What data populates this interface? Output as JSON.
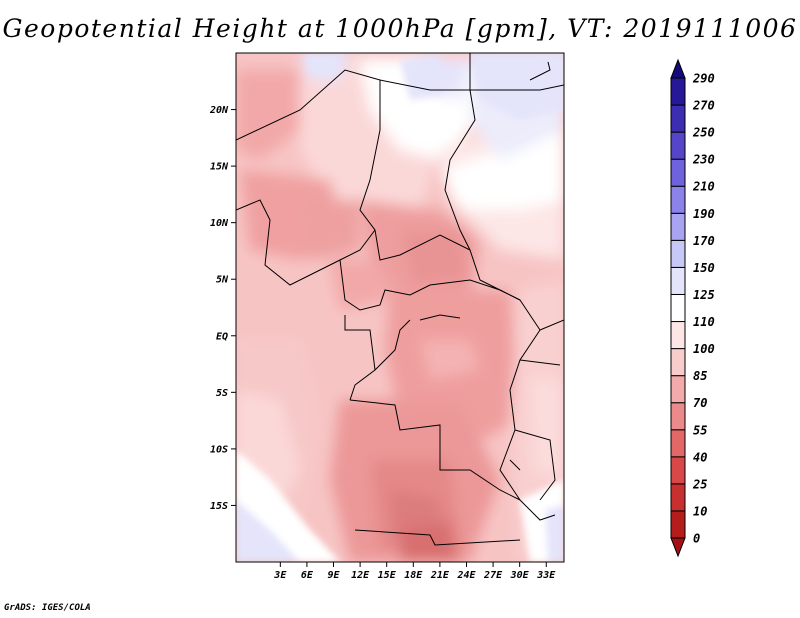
{
  "title": "Geopotential Height at 1000hPa [gpm], VT: 2019111006",
  "credit": "GrADS: IGES/COLA",
  "map": {
    "variable": "Geopotential Height",
    "level": "1000hPa",
    "units": "gpm",
    "valid_time": "2019111006",
    "lon_range": [
      -2,
      35
    ],
    "lat_range": [
      -20,
      25
    ],
    "lon_ticks": [
      "3E",
      "6E",
      "9E",
      "12E",
      "15E",
      "18E",
      "21E",
      "24E",
      "27E",
      "30E",
      "33E"
    ],
    "lat_ticks": [
      "20N",
      "15N",
      "10N",
      "5N",
      "EQ",
      "5S",
      "10S",
      "15S"
    ]
  },
  "colorbar": {
    "levels": [
      "0",
      "10",
      "25",
      "40",
      "55",
      "70",
      "85",
      "100",
      "110",
      "125",
      "150",
      "170",
      "190",
      "210",
      "230",
      "250",
      "270",
      "290"
    ],
    "colors": [
      "#a50f15",
      "#b51d1d",
      "#c83030",
      "#d84848",
      "#e26868",
      "#ea8a8a",
      "#f3aaaa",
      "#f9cccc",
      "#fde6e6",
      "#ffffff",
      "#e4e4fb",
      "#c8c8f7",
      "#a9a4f2",
      "#8b82ea",
      "#6e62dd",
      "#5546c9",
      "#3d2db2",
      "#261896",
      "#150a78"
    ]
  }
}
